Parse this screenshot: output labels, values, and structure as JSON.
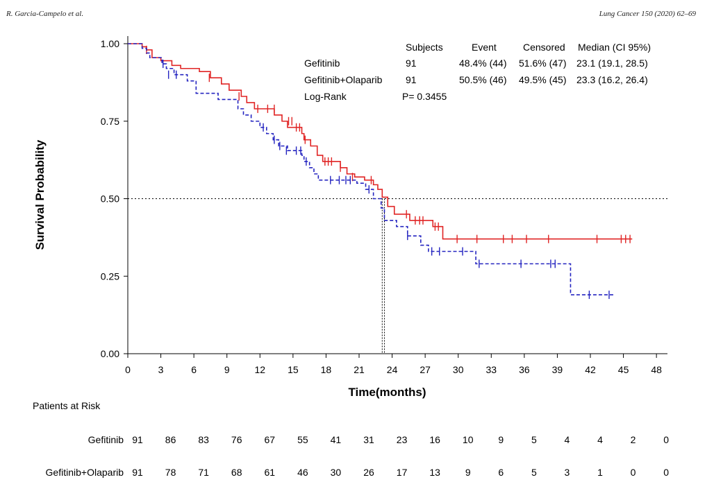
{
  "header": {
    "left": "R. Garcia-Campelo et al.",
    "right": "Lung Cancer 150 (2020) 62–69"
  },
  "colors": {
    "gefitinib": "#e02424",
    "combo": "#2424c0"
  },
  "chart_data": {
    "type": "line",
    "title": "",
    "xlabel": "Time(months)",
    "ylabel": "Survival Probability",
    "xlim": [
      0,
      49
    ],
    "ylim": [
      0,
      1.0
    ],
    "x_ticks": [
      0,
      3,
      6,
      9,
      12,
      15,
      18,
      21,
      24,
      27,
      30,
      33,
      36,
      39,
      42,
      45,
      48
    ],
    "x_tick_labels": [
      "0",
      "3",
      "6",
      "9",
      "12",
      "15",
      "18",
      "21",
      "24",
      "27",
      "30",
      "33",
      "36",
      "39",
      "42",
      "45",
      "48"
    ],
    "y_ticks": [
      0,
      0.25,
      0.5,
      0.75,
      1.0
    ],
    "y_tick_labels": [
      "0.00",
      "0.25",
      "0.50",
      "0.75",
      "1.00"
    ],
    "reference_line_y": 0.5,
    "median_lines_x": [
      23.1,
      23.3
    ],
    "series": [
      {
        "name": "Gefitinib",
        "style": "solid",
        "steps": [
          [
            0,
            1.0
          ],
          [
            1.3,
            0.99
          ],
          [
            1.7,
            0.98
          ],
          [
            2.2,
            0.955
          ],
          [
            3,
            0.945
          ],
          [
            4,
            0.93
          ],
          [
            4.8,
            0.92
          ],
          [
            6.5,
            0.91
          ],
          [
            7.5,
            0.89
          ],
          [
            8.5,
            0.87
          ],
          [
            9.2,
            0.85
          ],
          [
            10.3,
            0.83
          ],
          [
            10.8,
            0.81
          ],
          [
            11.5,
            0.79
          ],
          [
            13.3,
            0.77
          ],
          [
            14,
            0.75
          ],
          [
            14.5,
            0.73
          ],
          [
            15.8,
            0.71
          ],
          [
            16,
            0.69
          ],
          [
            16.6,
            0.67
          ],
          [
            17.2,
            0.64
          ],
          [
            17.7,
            0.62
          ],
          [
            19.3,
            0.6
          ],
          [
            19.9,
            0.58
          ],
          [
            20.6,
            0.57
          ],
          [
            21.5,
            0.56
          ],
          [
            22.3,
            0.545
          ],
          [
            22.7,
            0.53
          ],
          [
            23.1,
            0.505
          ],
          [
            23.6,
            0.475
          ],
          [
            24.2,
            0.45
          ],
          [
            25.6,
            0.43
          ],
          [
            27.7,
            0.41
          ],
          [
            28.6,
            0.37
          ],
          [
            45.8,
            0.37
          ]
        ],
        "censor": [
          [
            1.7,
            0.98
          ],
          [
            7.4,
            0.89
          ],
          [
            10.1,
            0.83
          ],
          [
            11.8,
            0.79
          ],
          [
            12.7,
            0.79
          ],
          [
            13.3,
            0.79
          ],
          [
            14.6,
            0.75
          ],
          [
            14.9,
            0.75
          ],
          [
            15.3,
            0.73
          ],
          [
            15.6,
            0.73
          ],
          [
            16.1,
            0.69
          ],
          [
            17.9,
            0.62
          ],
          [
            18.2,
            0.62
          ],
          [
            18.5,
            0.62
          ],
          [
            19.3,
            0.6
          ],
          [
            20.4,
            0.57
          ],
          [
            22.1,
            0.56
          ],
          [
            25.3,
            0.45
          ],
          [
            26.1,
            0.43
          ],
          [
            26.5,
            0.43
          ],
          [
            26.8,
            0.43
          ],
          [
            27.9,
            0.41
          ],
          [
            28.2,
            0.41
          ],
          [
            29.9,
            0.37
          ],
          [
            31.7,
            0.37
          ],
          [
            34.1,
            0.37
          ],
          [
            34.9,
            0.37
          ],
          [
            36.2,
            0.37
          ],
          [
            38.2,
            0.37
          ],
          [
            42.6,
            0.37
          ],
          [
            44.8,
            0.37
          ],
          [
            45.2,
            0.37
          ],
          [
            45.6,
            0.37
          ]
        ]
      },
      {
        "name": "Gefitinib+Olaparib",
        "style": "dashed",
        "steps": [
          [
            0,
            1.0
          ],
          [
            1.3,
            0.985
          ],
          [
            1.7,
            0.97
          ],
          [
            2,
            0.955
          ],
          [
            3.1,
            0.935
          ],
          [
            3.5,
            0.92
          ],
          [
            4.2,
            0.9
          ],
          [
            5.4,
            0.88
          ],
          [
            6.2,
            0.84
          ],
          [
            8.2,
            0.82
          ],
          [
            10,
            0.79
          ],
          [
            10.5,
            0.77
          ],
          [
            11.2,
            0.75
          ],
          [
            12,
            0.73
          ],
          [
            12.6,
            0.71
          ],
          [
            13.2,
            0.69
          ],
          [
            13.7,
            0.67
          ],
          [
            14.5,
            0.655
          ],
          [
            15.8,
            0.64
          ],
          [
            16,
            0.62
          ],
          [
            16.5,
            0.6
          ],
          [
            16.9,
            0.58
          ],
          [
            17.3,
            0.56
          ],
          [
            20.8,
            0.55
          ],
          [
            21.6,
            0.53
          ],
          [
            22.3,
            0.5
          ],
          [
            23,
            0.47
          ],
          [
            23.3,
            0.43
          ],
          [
            24.4,
            0.41
          ],
          [
            25.4,
            0.38
          ],
          [
            26.6,
            0.35
          ],
          [
            27.3,
            0.33
          ],
          [
            31.6,
            0.29
          ],
          [
            40.2,
            0.19
          ],
          [
            44.1,
            0.19
          ]
        ],
        "censor": [
          [
            3.2,
            0.935
          ],
          [
            3.7,
            0.9
          ],
          [
            4.4,
            0.9
          ],
          [
            12.3,
            0.73
          ],
          [
            13.3,
            0.69
          ],
          [
            13.8,
            0.67
          ],
          [
            14.4,
            0.655
          ],
          [
            15.3,
            0.655
          ],
          [
            15.7,
            0.655
          ],
          [
            16.2,
            0.62
          ],
          [
            18.4,
            0.56
          ],
          [
            19.2,
            0.56
          ],
          [
            19.8,
            0.56
          ],
          [
            20.2,
            0.56
          ],
          [
            21.9,
            0.53
          ],
          [
            25.4,
            0.38
          ],
          [
            27.6,
            0.33
          ],
          [
            28.3,
            0.33
          ],
          [
            30.4,
            0.33
          ],
          [
            31.9,
            0.29
          ],
          [
            35.7,
            0.29
          ],
          [
            38.4,
            0.29
          ],
          [
            38.8,
            0.29
          ],
          [
            41.9,
            0.19
          ],
          [
            43.7,
            0.19
          ]
        ]
      }
    ],
    "legend": {
      "headers": [
        "Subjects",
        "Event",
        "Censored",
        "Median (CI 95%)"
      ],
      "rows": [
        {
          "label": "Gefitinib",
          "subjects": "91",
          "event": "48.4% (44)",
          "censored": "51.6% (47)",
          "median": "23.1 (19.1, 28.5)"
        },
        {
          "label": "Gefitinib+Olaparib",
          "subjects": "91",
          "event": "50.5% (46)",
          "censored": "49.5% (45)",
          "median": "23.3 (16.2, 26.4)"
        }
      ],
      "logrank_label": "Log-Rank",
      "logrank_value": "P= 0.3455"
    },
    "risk_table": {
      "title": "Patients at Risk",
      "rows": [
        {
          "label": "Gefitinib",
          "values": [
            "91",
            "86",
            "83",
            "76",
            "67",
            "55",
            "41",
            "31",
            "23",
            "16",
            "10",
            "9",
            "5",
            "4",
            "4",
            "2",
            "0"
          ]
        },
        {
          "label": "Gefitinib+Olaparib",
          "values": [
            "91",
            "78",
            "71",
            "68",
            "61",
            "46",
            "30",
            "26",
            "17",
            "13",
            "9",
            "6",
            "5",
            "3",
            "1",
            "0",
            "0"
          ]
        }
      ]
    }
  }
}
